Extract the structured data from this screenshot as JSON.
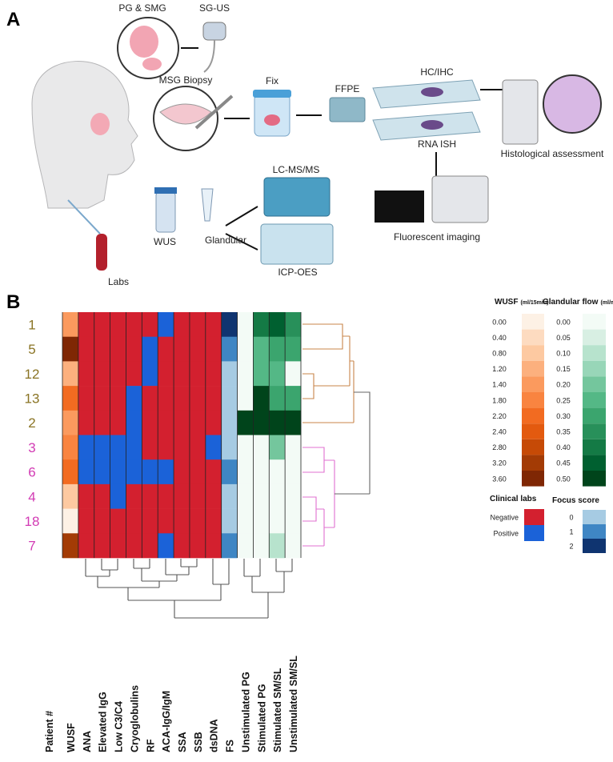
{
  "panel_a": {
    "label": "A",
    "items": [
      "PG & SMG",
      "SG-US",
      "MSG Biopsy",
      "Fix",
      "FFPE",
      "HC/IHC",
      "RNA ISH",
      "Histological assessment",
      "LC-MS/MS",
      "WUS",
      "Glandular",
      "Labs",
      "ICP-OES",
      "Fluorescent imaging"
    ]
  },
  "chart_data": {
    "type": "heatmap",
    "label": "B",
    "row_label_title": "Patient #",
    "categories": [
      "1",
      "5",
      "12",
      "13",
      "2",
      "3",
      "6",
      "4",
      "18",
      "7"
    ],
    "row_colors": [
      "#8a7424",
      "#8a7424",
      "#8a7424",
      "#8a7424",
      "#8a7424",
      "#d23bb4",
      "#d23bb4",
      "#d23bb4",
      "#d23bb4",
      "#d23bb4"
    ],
    "series": [
      {
        "name": "WUSF",
        "scale": "wusf",
        "values": [
          1.4,
          3.6,
          1.2,
          2.2,
          1.4,
          2.0,
          2.2,
          1.0,
          0.0,
          3.2
        ]
      },
      {
        "name": "ANA",
        "scale": "labs",
        "values": [
          0,
          0,
          0,
          0,
          0,
          1,
          1,
          0,
          0,
          0
        ]
      },
      {
        "name": "Elevated IgG",
        "scale": "labs",
        "values": [
          0,
          0,
          0,
          0,
          0,
          1,
          1,
          0,
          0,
          0
        ]
      },
      {
        "name": "Low C3/C4",
        "scale": "labs",
        "values": [
          0,
          0,
          0,
          0,
          0,
          1,
          1,
          1,
          0,
          0
        ]
      },
      {
        "name": "Cryoglobulins",
        "scale": "labs",
        "values": [
          0,
          0,
          0,
          1,
          1,
          1,
          1,
          0,
          0,
          0
        ]
      },
      {
        "name": "RF",
        "scale": "labs",
        "values": [
          0,
          1,
          1,
          0,
          0,
          0,
          1,
          0,
          0,
          0
        ]
      },
      {
        "name": "ACA-IgG/IgM",
        "scale": "labs",
        "values": [
          1,
          0,
          0,
          0,
          0,
          0,
          1,
          0,
          0,
          1
        ]
      },
      {
        "name": "SSA",
        "scale": "labs",
        "values": [
          0,
          0,
          0,
          0,
          0,
          0,
          0,
          0,
          0,
          0
        ]
      },
      {
        "name": "SSB",
        "scale": "labs",
        "values": [
          0,
          0,
          0,
          0,
          0,
          0,
          0,
          0,
          0,
          0
        ]
      },
      {
        "name": "dsDNA",
        "scale": "labs",
        "values": [
          0,
          0,
          0,
          0,
          0,
          1,
          0,
          0,
          0,
          0
        ]
      },
      {
        "name": "FS",
        "scale": "fs",
        "values": [
          2,
          1,
          0,
          0,
          0,
          0,
          1,
          0,
          0,
          1
        ]
      },
      {
        "name": "Unstimulated PG",
        "scale": "flow",
        "values": [
          0.0,
          0.0,
          0.0,
          0.0,
          0.5,
          0.0,
          0.0,
          0.0,
          0.0,
          0.0
        ]
      },
      {
        "name": "Stimulated PG",
        "scale": "flow",
        "values": [
          0.4,
          0.25,
          0.25,
          0.5,
          0.5,
          0.0,
          0.0,
          0.0,
          0.0,
          0.0
        ]
      },
      {
        "name": "Stimulated SM/SL",
        "scale": "flow",
        "values": [
          0.45,
          0.3,
          0.25,
          0.3,
          0.5,
          0.2,
          0.0,
          0.0,
          0.02,
          0.1
        ]
      },
      {
        "name": "Unstimulated SM/SL",
        "scale": "flow",
        "values": [
          0.35,
          0.3,
          0.0,
          0.3,
          0.5,
          0.0,
          0.0,
          0.0,
          0.0,
          0.0
        ]
      }
    ],
    "scales": {
      "wusf": {
        "title": "WUSF",
        "unit": "(ml/15min)",
        "ticks": [
          {
            "value": 0,
            "label": "0.00"
          },
          {
            "value": 0.4,
            "label": "0.40"
          },
          {
            "value": 0.8,
            "label": "0.80"
          },
          {
            "value": 1.2,
            "label": "1.20"
          },
          {
            "value": 1.4,
            "label": "1.40"
          },
          {
            "value": 1.8,
            "label": "1.80"
          },
          {
            "value": 2.2,
            "label": "2.20"
          },
          {
            "value": 2.4,
            "label": "2.40"
          },
          {
            "value": 2.8,
            "label": "2.80"
          },
          {
            "value": 3.2,
            "label": "3.20"
          },
          {
            "value": 3.6,
            "label": "3.60"
          }
        ],
        "colors": [
          "#fdf1e5",
          "#fddbc0",
          "#fdc9a1",
          "#fcb07e",
          "#fb9a5e",
          "#f98440",
          "#f26b21",
          "#e35a0f",
          "#c64a06",
          "#a33b05",
          "#7f2704"
        ]
      },
      "flow": {
        "title": "Glandular flow",
        "unit": "(ml/min)",
        "ticks": [
          {
            "value": 0,
            "label": "0.00"
          },
          {
            "value": 0.05,
            "label": "0.05"
          },
          {
            "value": 0.1,
            "label": "0.10"
          },
          {
            "value": 0.15,
            "label": "0.15"
          },
          {
            "value": 0.2,
            "label": "0.20"
          },
          {
            "value": 0.25,
            "label": "0.25"
          },
          {
            "value": 0.3,
            "label": "0.30"
          },
          {
            "value": 0.35,
            "label": "0.35"
          },
          {
            "value": 0.4,
            "label": "0.40"
          },
          {
            "value": 0.45,
            "label": "0.45"
          },
          {
            "value": 0.5,
            "label": "0.50"
          }
        ],
        "colors": [
          "#f3fbf6",
          "#d8efe3",
          "#b7e3cd",
          "#98d6b8",
          "#74c69d",
          "#54b886",
          "#3ba56e",
          "#28905a",
          "#147a45",
          "#006030",
          "#00441b"
        ]
      },
      "labs": {
        "title": "Clinical labs",
        "ticks": [
          {
            "value": 0,
            "label": "Negative"
          },
          {
            "value": 1,
            "label": "Positive"
          }
        ],
        "colors": [
          "#d3202f",
          "#1b62d8"
        ]
      },
      "fs": {
        "title": "Focus score",
        "ticks": [
          0,
          1,
          2
        ],
        "colors": [
          "#a6cbe3",
          "#3f86c4",
          "#0f3470"
        ]
      }
    }
  }
}
